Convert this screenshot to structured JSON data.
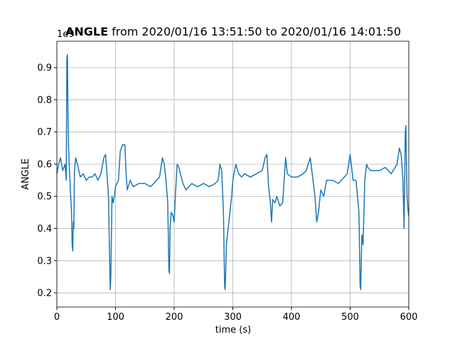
{
  "chart_data": {
    "type": "line",
    "title": {
      "bold": "ANGLE",
      "text": "from 2020/01/16 13:51:50 to 2020/01/16 14:01:50"
    },
    "xlabel": "time (s)",
    "ylabel": "ANGLE",
    "offset_text": "1e9",
    "x": [
      0,
      3,
      6,
      10,
      14,
      16,
      17,
      18,
      19,
      20,
      21,
      23,
      25,
      26,
      27,
      28,
      29,
      30,
      32,
      35,
      40,
      45,
      50,
      55,
      60,
      65,
      70,
      75,
      80,
      83,
      85,
      88,
      90,
      91,
      92,
      94,
      96,
      98,
      100,
      105,
      108,
      112,
      116,
      118,
      120,
      125,
      130,
      140,
      150,
      160,
      170,
      175,
      180,
      183,
      186,
      189,
      191,
      192,
      193,
      195,
      198,
      200,
      202,
      205,
      208,
      212,
      215,
      220,
      230,
      240,
      250,
      260,
      270,
      275,
      278,
      281,
      284,
      286,
      287,
      289,
      292,
      295,
      298,
      300,
      305,
      310,
      315,
      320,
      330,
      340,
      350,
      355,
      358,
      361,
      364,
      366,
      368,
      372,
      375,
      380,
      385,
      390,
      393,
      400,
      410,
      420,
      425,
      432,
      436,
      440,
      443,
      446,
      450,
      455,
      460,
      470,
      480,
      490,
      495,
      500,
      505,
      510,
      515,
      517,
      518,
      520,
      522,
      525,
      528,
      530,
      535,
      540,
      550,
      560,
      570,
      580,
      584,
      587,
      590,
      592,
      594,
      595,
      597,
      599,
      600
    ],
    "series": [
      {
        "name": "ANGLE",
        "color": "#1f77b4",
        "values": [
          0.57,
          0.6,
          0.62,
          0.58,
          0.6,
          0.55,
          0.93,
          0.94,
          0.75,
          0.65,
          0.6,
          0.52,
          0.45,
          0.35,
          0.33,
          0.42,
          0.4,
          0.58,
          0.62,
          0.6,
          0.56,
          0.57,
          0.55,
          0.56,
          0.56,
          0.57,
          0.55,
          0.57,
          0.62,
          0.63,
          0.58,
          0.5,
          0.3,
          0.21,
          0.25,
          0.5,
          0.48,
          0.5,
          0.53,
          0.55,
          0.64,
          0.66,
          0.66,
          0.57,
          0.52,
          0.55,
          0.53,
          0.54,
          0.54,
          0.53,
          0.55,
          0.56,
          0.62,
          0.6,
          0.55,
          0.48,
          0.27,
          0.26,
          0.4,
          0.45,
          0.44,
          0.42,
          0.5,
          0.6,
          0.59,
          0.56,
          0.54,
          0.52,
          0.54,
          0.53,
          0.54,
          0.53,
          0.54,
          0.55,
          0.6,
          0.58,
          0.45,
          0.22,
          0.21,
          0.35,
          0.4,
          0.45,
          0.5,
          0.55,
          0.6,
          0.57,
          0.56,
          0.57,
          0.56,
          0.57,
          0.58,
          0.62,
          0.63,
          0.53,
          0.48,
          0.42,
          0.49,
          0.48,
          0.5,
          0.47,
          0.48,
          0.62,
          0.57,
          0.56,
          0.56,
          0.57,
          0.58,
          0.62,
          0.56,
          0.5,
          0.42,
          0.45,
          0.52,
          0.5,
          0.55,
          0.55,
          0.54,
          0.56,
          0.57,
          0.63,
          0.55,
          0.55,
          0.45,
          0.22,
          0.21,
          0.38,
          0.35,
          0.55,
          0.6,
          0.59,
          0.58,
          0.58,
          0.58,
          0.59,
          0.57,
          0.6,
          0.65,
          0.63,
          0.55,
          0.4,
          0.7,
          0.72,
          0.5,
          0.45,
          0.44
        ]
      }
    ],
    "xlim": [
      0,
      600
    ],
    "ylim": [
      0.156,
      0.982
    ],
    "xticks": [
      0,
      100,
      200,
      300,
      400,
      500,
      600
    ],
    "yticks": [
      0.2,
      0.3,
      0.4,
      0.5,
      0.6,
      0.7,
      0.8,
      0.9
    ],
    "grid": true
  }
}
